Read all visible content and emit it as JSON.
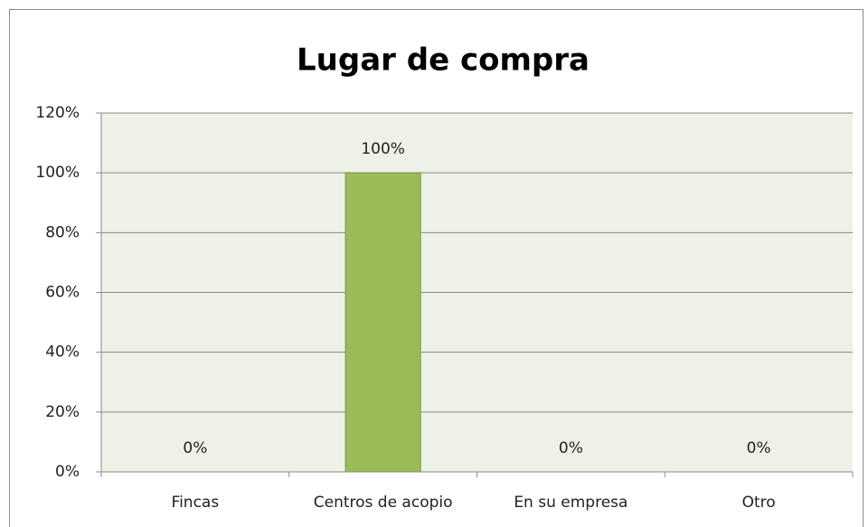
{
  "chart_data": {
    "type": "bar",
    "title": "Lugar de compra",
    "categories": [
      "Fincas",
      "Centros de acopio",
      "En su empresa",
      "Otro"
    ],
    "values": [
      0,
      100,
      0,
      0
    ],
    "value_labels": [
      "0%",
      "100%",
      "0%",
      "0%"
    ],
    "color": "#9bbb59",
    "ylim": [
      0,
      120
    ],
    "yticks": [
      {
        "value": 0,
        "label": "0%"
      },
      {
        "value": 20,
        "label": "20%"
      },
      {
        "value": 40,
        "label": "40%"
      },
      {
        "value": 60,
        "label": "60%"
      },
      {
        "value": 80,
        "label": "80%"
      },
      {
        "value": 100,
        "label": "100%"
      },
      {
        "value": 120,
        "label": "120%"
      }
    ],
    "grid": true
  }
}
